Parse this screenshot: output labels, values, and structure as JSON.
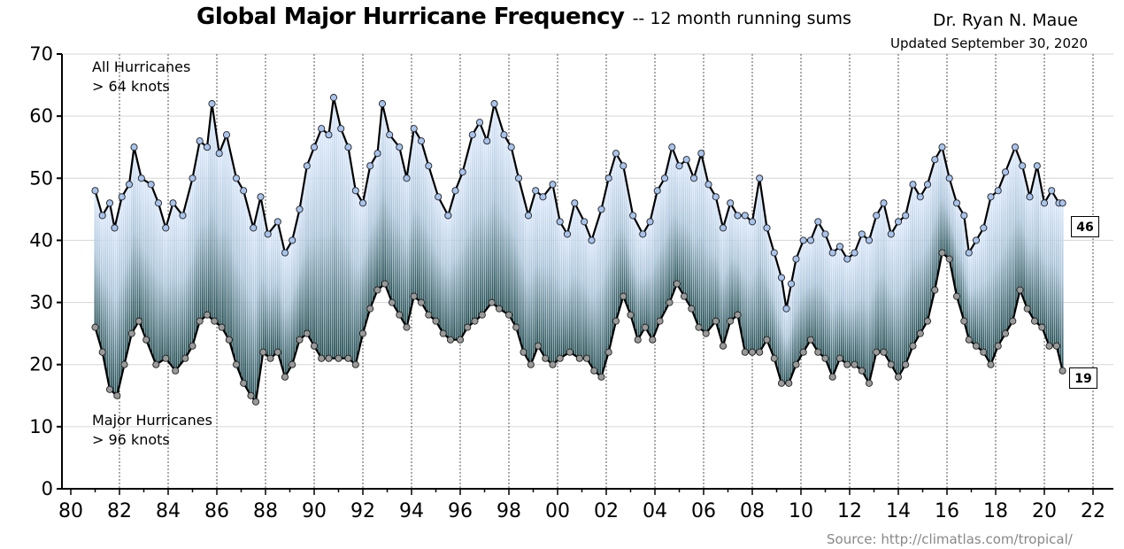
{
  "header": {
    "title": "Global Major Hurricane Frequency",
    "subtitle": "-- 12 month running sums",
    "author": "Dr. Ryan N. Maue",
    "updated": "Updated September 30, 2020"
  },
  "source": "Source:   http://climatlas.com/tropical/",
  "annotations": {
    "all_label": "All Hurricanes",
    "all_threshold": "> 64 knots",
    "major_label": "Major Hurricanes",
    "major_threshold": "> 96 knots"
  },
  "end_values": {
    "all": "46",
    "major": "19"
  },
  "colors": {
    "all_marker": "#a8c4ee",
    "major_marker": "#9a9a9a",
    "fill_top": "#dbe8fb",
    "fill_bottom": "#1f4a4f",
    "line": "#000000"
  },
  "chart_data": {
    "type": "line",
    "title": "Global Major Hurricane Frequency",
    "x_tick_labels": [
      "80",
      "82",
      "84",
      "86",
      "88",
      "90",
      "92",
      "94",
      "96",
      "98",
      "00",
      "02",
      "04",
      "06",
      "08",
      "10",
      "12",
      "14",
      "16",
      "18",
      "20",
      "22"
    ],
    "x_tick_years": [
      1980,
      1982,
      1984,
      1986,
      1988,
      1990,
      1992,
      1994,
      1996,
      1998,
      2000,
      2002,
      2004,
      2006,
      2008,
      2010,
      2012,
      2014,
      2016,
      2018,
      2020,
      2022
    ],
    "xlim": [
      1980,
      2022.5
    ],
    "ylim": [
      0,
      70
    ],
    "y_ticks": [
      0,
      10,
      20,
      30,
      40,
      50,
      60,
      70
    ],
    "grid": true,
    "series": [
      {
        "name": "All Hurricanes",
        "points": [
          [
            1981.0,
            48
          ],
          [
            1981.3,
            44
          ],
          [
            1981.6,
            46
          ],
          [
            1981.8,
            42
          ],
          [
            1982.1,
            47
          ],
          [
            1982.4,
            49
          ],
          [
            1982.6,
            55
          ],
          [
            1982.9,
            50
          ],
          [
            1983.3,
            49
          ],
          [
            1983.6,
            46
          ],
          [
            1983.9,
            42
          ],
          [
            1984.2,
            46
          ],
          [
            1984.6,
            44
          ],
          [
            1985.0,
            50
          ],
          [
            1985.3,
            56
          ],
          [
            1985.6,
            55
          ],
          [
            1985.8,
            62
          ],
          [
            1986.1,
            54
          ],
          [
            1986.4,
            57
          ],
          [
            1986.8,
            50
          ],
          [
            1987.1,
            48
          ],
          [
            1987.5,
            42
          ],
          [
            1987.8,
            47
          ],
          [
            1988.1,
            41
          ],
          [
            1988.5,
            43
          ],
          [
            1988.8,
            38
          ],
          [
            1989.1,
            40
          ],
          [
            1989.4,
            45
          ],
          [
            1989.7,
            52
          ],
          [
            1990.0,
            55
          ],
          [
            1990.3,
            58
          ],
          [
            1990.6,
            57
          ],
          [
            1990.8,
            63
          ],
          [
            1991.1,
            58
          ],
          [
            1991.4,
            55
          ],
          [
            1991.7,
            48
          ],
          [
            1992.0,
            46
          ],
          [
            1992.3,
            52
          ],
          [
            1992.6,
            54
          ],
          [
            1992.8,
            62
          ],
          [
            1993.1,
            57
          ],
          [
            1993.5,
            55
          ],
          [
            1993.8,
            50
          ],
          [
            1994.1,
            58
          ],
          [
            1994.4,
            56
          ],
          [
            1994.7,
            52
          ],
          [
            1995.1,
            47
          ],
          [
            1995.5,
            44
          ],
          [
            1995.8,
            48
          ],
          [
            1996.1,
            51
          ],
          [
            1996.5,
            57
          ],
          [
            1996.8,
            59
          ],
          [
            1997.1,
            56
          ],
          [
            1997.4,
            62
          ],
          [
            1997.8,
            57
          ],
          [
            1998.1,
            55
          ],
          [
            1998.4,
            50
          ],
          [
            1998.8,
            44
          ],
          [
            1999.1,
            48
          ],
          [
            1999.4,
            47
          ],
          [
            1999.8,
            49
          ],
          [
            2000.1,
            43
          ],
          [
            2000.4,
            41
          ],
          [
            2000.7,
            46
          ],
          [
            2001.1,
            43
          ],
          [
            2001.4,
            40
          ],
          [
            2001.8,
            45
          ],
          [
            2002.1,
            50
          ],
          [
            2002.4,
            54
          ],
          [
            2002.7,
            52
          ],
          [
            2003.1,
            44
          ],
          [
            2003.5,
            41
          ],
          [
            2003.8,
            43
          ],
          [
            2004.1,
            48
          ],
          [
            2004.4,
            50
          ],
          [
            2004.7,
            55
          ],
          [
            2005.0,
            52
          ],
          [
            2005.3,
            53
          ],
          [
            2005.6,
            50
          ],
          [
            2005.9,
            54
          ],
          [
            2006.2,
            49
          ],
          [
            2006.5,
            47
          ],
          [
            2006.8,
            42
          ],
          [
            2007.1,
            46
          ],
          [
            2007.4,
            44
          ],
          [
            2007.7,
            44
          ],
          [
            2008.0,
            43
          ],
          [
            2008.3,
            50
          ],
          [
            2008.6,
            42
          ],
          [
            2008.9,
            38
          ],
          [
            2009.2,
            34
          ],
          [
            2009.4,
            29
          ],
          [
            2009.6,
            33
          ],
          [
            2009.8,
            37
          ],
          [
            2010.1,
            40
          ],
          [
            2010.4,
            40
          ],
          [
            2010.7,
            43
          ],
          [
            2011.0,
            41
          ],
          [
            2011.3,
            38
          ],
          [
            2011.6,
            39
          ],
          [
            2011.9,
            37
          ],
          [
            2012.2,
            38
          ],
          [
            2012.5,
            41
          ],
          [
            2012.8,
            40
          ],
          [
            2013.1,
            44
          ],
          [
            2013.4,
            46
          ],
          [
            2013.7,
            41
          ],
          [
            2014.0,
            43
          ],
          [
            2014.3,
            44
          ],
          [
            2014.6,
            49
          ],
          [
            2014.9,
            47
          ],
          [
            2015.2,
            49
          ],
          [
            2015.5,
            53
          ],
          [
            2015.8,
            55
          ],
          [
            2016.1,
            50
          ],
          [
            2016.4,
            46
          ],
          [
            2016.7,
            44
          ],
          [
            2016.9,
            38
          ],
          [
            2017.2,
            40
          ],
          [
            2017.5,
            42
          ],
          [
            2017.8,
            47
          ],
          [
            2018.1,
            48
          ],
          [
            2018.4,
            51
          ],
          [
            2018.8,
            55
          ],
          [
            2019.1,
            52
          ],
          [
            2019.4,
            47
          ],
          [
            2019.7,
            52
          ],
          [
            2020.0,
            46
          ],
          [
            2020.3,
            48
          ],
          [
            2020.6,
            46
          ],
          [
            2020.75,
            46
          ]
        ]
      },
      {
        "name": "Major Hurricanes",
        "points": [
          [
            1981.0,
            26
          ],
          [
            1981.3,
            22
          ],
          [
            1981.6,
            16
          ],
          [
            1981.9,
            15
          ],
          [
            1982.2,
            20
          ],
          [
            1982.5,
            25
          ],
          [
            1982.8,
            27
          ],
          [
            1983.1,
            24
          ],
          [
            1983.5,
            20
          ],
          [
            1983.9,
            21
          ],
          [
            1984.3,
            19
          ],
          [
            1984.7,
            21
          ],
          [
            1985.0,
            23
          ],
          [
            1985.3,
            27
          ],
          [
            1985.6,
            28
          ],
          [
            1985.9,
            27
          ],
          [
            1986.2,
            26
          ],
          [
            1986.5,
            24
          ],
          [
            1986.8,
            20
          ],
          [
            1987.1,
            17
          ],
          [
            1987.4,
            15
          ],
          [
            1987.6,
            14
          ],
          [
            1987.9,
            22
          ],
          [
            1988.2,
            21
          ],
          [
            1988.5,
            22
          ],
          [
            1988.8,
            18
          ],
          [
            1989.1,
            20
          ],
          [
            1989.4,
            24
          ],
          [
            1989.7,
            25
          ],
          [
            1990.0,
            23
          ],
          [
            1990.3,
            21
          ],
          [
            1990.6,
            21
          ],
          [
            1991.0,
            21
          ],
          [
            1991.4,
            21
          ],
          [
            1991.7,
            20
          ],
          [
            1992.0,
            25
          ],
          [
            1992.3,
            29
          ],
          [
            1992.6,
            32
          ],
          [
            1992.9,
            33
          ],
          [
            1993.2,
            30
          ],
          [
            1993.5,
            28
          ],
          [
            1993.8,
            26
          ],
          [
            1994.1,
            31
          ],
          [
            1994.4,
            30
          ],
          [
            1994.7,
            28
          ],
          [
            1995.0,
            27
          ],
          [
            1995.3,
            25
          ],
          [
            1995.6,
            24
          ],
          [
            1996.0,
            24
          ],
          [
            1996.3,
            26
          ],
          [
            1996.6,
            27
          ],
          [
            1996.9,
            28
          ],
          [
            1997.3,
            30
          ],
          [
            1997.6,
            29
          ],
          [
            1998.0,
            28
          ],
          [
            1998.3,
            26
          ],
          [
            1998.6,
            22
          ],
          [
            1998.9,
            20
          ],
          [
            1999.2,
            23
          ],
          [
            1999.5,
            21
          ],
          [
            1999.8,
            20
          ],
          [
            2000.1,
            21
          ],
          [
            2000.5,
            22
          ],
          [
            2000.9,
            21
          ],
          [
            2001.2,
            21
          ],
          [
            2001.5,
            19
          ],
          [
            2001.8,
            18
          ],
          [
            2002.1,
            22
          ],
          [
            2002.4,
            27
          ],
          [
            2002.7,
            31
          ],
          [
            2003.0,
            28
          ],
          [
            2003.3,
            24
          ],
          [
            2003.6,
            26
          ],
          [
            2003.9,
            24
          ],
          [
            2004.2,
            27
          ],
          [
            2004.6,
            30
          ],
          [
            2004.9,
            33
          ],
          [
            2005.2,
            31
          ],
          [
            2005.5,
            29
          ],
          [
            2005.8,
            26
          ],
          [
            2006.1,
            25
          ],
          [
            2006.5,
            27
          ],
          [
            2006.8,
            23
          ],
          [
            2007.1,
            27
          ],
          [
            2007.4,
            28
          ],
          [
            2007.7,
            22
          ],
          [
            2008.0,
            22
          ],
          [
            2008.3,
            22
          ],
          [
            2008.6,
            24
          ],
          [
            2008.9,
            21
          ],
          [
            2009.2,
            17
          ],
          [
            2009.5,
            17
          ],
          [
            2009.8,
            20
          ],
          [
            2010.1,
            22
          ],
          [
            2010.4,
            24
          ],
          [
            2010.7,
            22
          ],
          [
            2011.0,
            21
          ],
          [
            2011.3,
            18
          ],
          [
            2011.6,
            21
          ],
          [
            2011.9,
            20
          ],
          [
            2012.2,
            20
          ],
          [
            2012.5,
            19
          ],
          [
            2012.8,
            17
          ],
          [
            2013.1,
            22
          ],
          [
            2013.4,
            22
          ],
          [
            2013.7,
            20
          ],
          [
            2014.0,
            18
          ],
          [
            2014.3,
            20
          ],
          [
            2014.6,
            23
          ],
          [
            2014.9,
            25
          ],
          [
            2015.2,
            27
          ],
          [
            2015.5,
            32
          ],
          [
            2015.8,
            38
          ],
          [
            2016.1,
            37
          ],
          [
            2016.4,
            31
          ],
          [
            2016.7,
            27
          ],
          [
            2016.9,
            24
          ],
          [
            2017.2,
            23
          ],
          [
            2017.5,
            22
          ],
          [
            2017.8,
            20
          ],
          [
            2018.1,
            23
          ],
          [
            2018.4,
            25
          ],
          [
            2018.7,
            27
          ],
          [
            2019.0,
            32
          ],
          [
            2019.3,
            29
          ],
          [
            2019.6,
            27
          ],
          [
            2019.9,
            26
          ],
          [
            2020.2,
            23
          ],
          [
            2020.5,
            23
          ],
          [
            2020.75,
            19
          ]
        ]
      }
    ]
  }
}
